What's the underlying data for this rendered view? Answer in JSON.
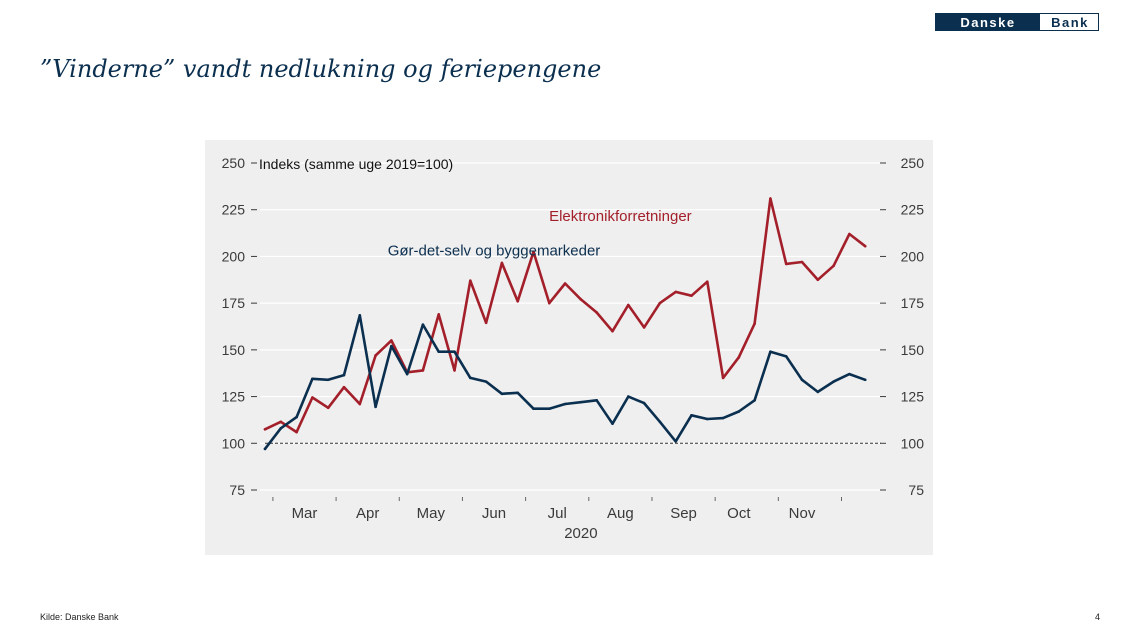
{
  "brand": {
    "name_part1": "Danske",
    "name_part2": "Bank"
  },
  "page": {
    "title": "”Vinderne” vandt nedlukning og feriepengene",
    "source": "Kilde: Danske Bank",
    "page_number": "4"
  },
  "colors": {
    "navy": "#0b2f4f",
    "red": "#a31f2a",
    "panel": "#efefef",
    "axis_text": "#3a3a3a"
  },
  "chart_data": {
    "type": "line",
    "title": "",
    "ylabel": "Indeks (samme uge 2019=100)",
    "xlabel": "2020",
    "ylim": [
      75,
      250
    ],
    "yticks": [
      75,
      100,
      125,
      150,
      175,
      200,
      225,
      250
    ],
    "xlim": [
      0,
      39
    ],
    "month_labels": [
      {
        "label": "Mar",
        "pos": 2.5
      },
      {
        "label": "Apr",
        "pos": 6.5
      },
      {
        "label": "May",
        "pos": 10.5
      },
      {
        "label": "Jun",
        "pos": 14.5
      },
      {
        "label": "Jul",
        "pos": 18.5
      },
      {
        "label": "Aug",
        "pos": 22.5
      },
      {
        "label": "Sep",
        "pos": 26.5
      },
      {
        "label": "Oct",
        "pos": 30
      },
      {
        "label": "Nov",
        "pos": 34
      }
    ],
    "month_ticks": [
      0.5,
      4.5,
      8.5,
      12.5,
      16.5,
      20.5,
      24.5,
      28.5,
      32.5,
      36.5
    ],
    "reference_line": 100,
    "grid": "horizontal",
    "series": [
      {
        "name": "Elektronikforretninger",
        "color": "#a31f2a",
        "label_anchor": {
          "x": 22.5,
          "y": 219
        },
        "values": [
          107.5,
          111.5,
          106,
          124.5,
          119,
          130,
          121,
          147,
          155,
          138,
          139,
          169,
          139,
          187,
          164.5,
          196.5,
          176,
          202.5,
          175,
          185.5,
          177,
          170,
          160,
          174,
          162,
          175,
          181,
          179,
          186.5,
          135,
          146,
          164,
          231,
          196,
          197,
          187.5,
          195,
          212,
          205.5
        ]
      },
      {
        "name": "Gør-det-selv og byggemarkeder",
        "color": "#0b2f4f",
        "label_anchor": {
          "x": 14.5,
          "y": 200.5
        },
        "values": [
          97,
          108,
          114,
          134.5,
          134,
          136.5,
          168.5,
          119.5,
          152,
          137,
          163.5,
          149,
          149,
          135,
          133,
          126.5,
          127,
          118.5,
          118.5,
          121,
          122,
          123,
          110.5,
          125,
          121.5,
          111.5,
          101,
          115,
          113,
          113.5,
          117,
          123,
          149,
          146.5,
          134,
          127.5,
          133,
          137,
          134
        ]
      }
    ]
  }
}
